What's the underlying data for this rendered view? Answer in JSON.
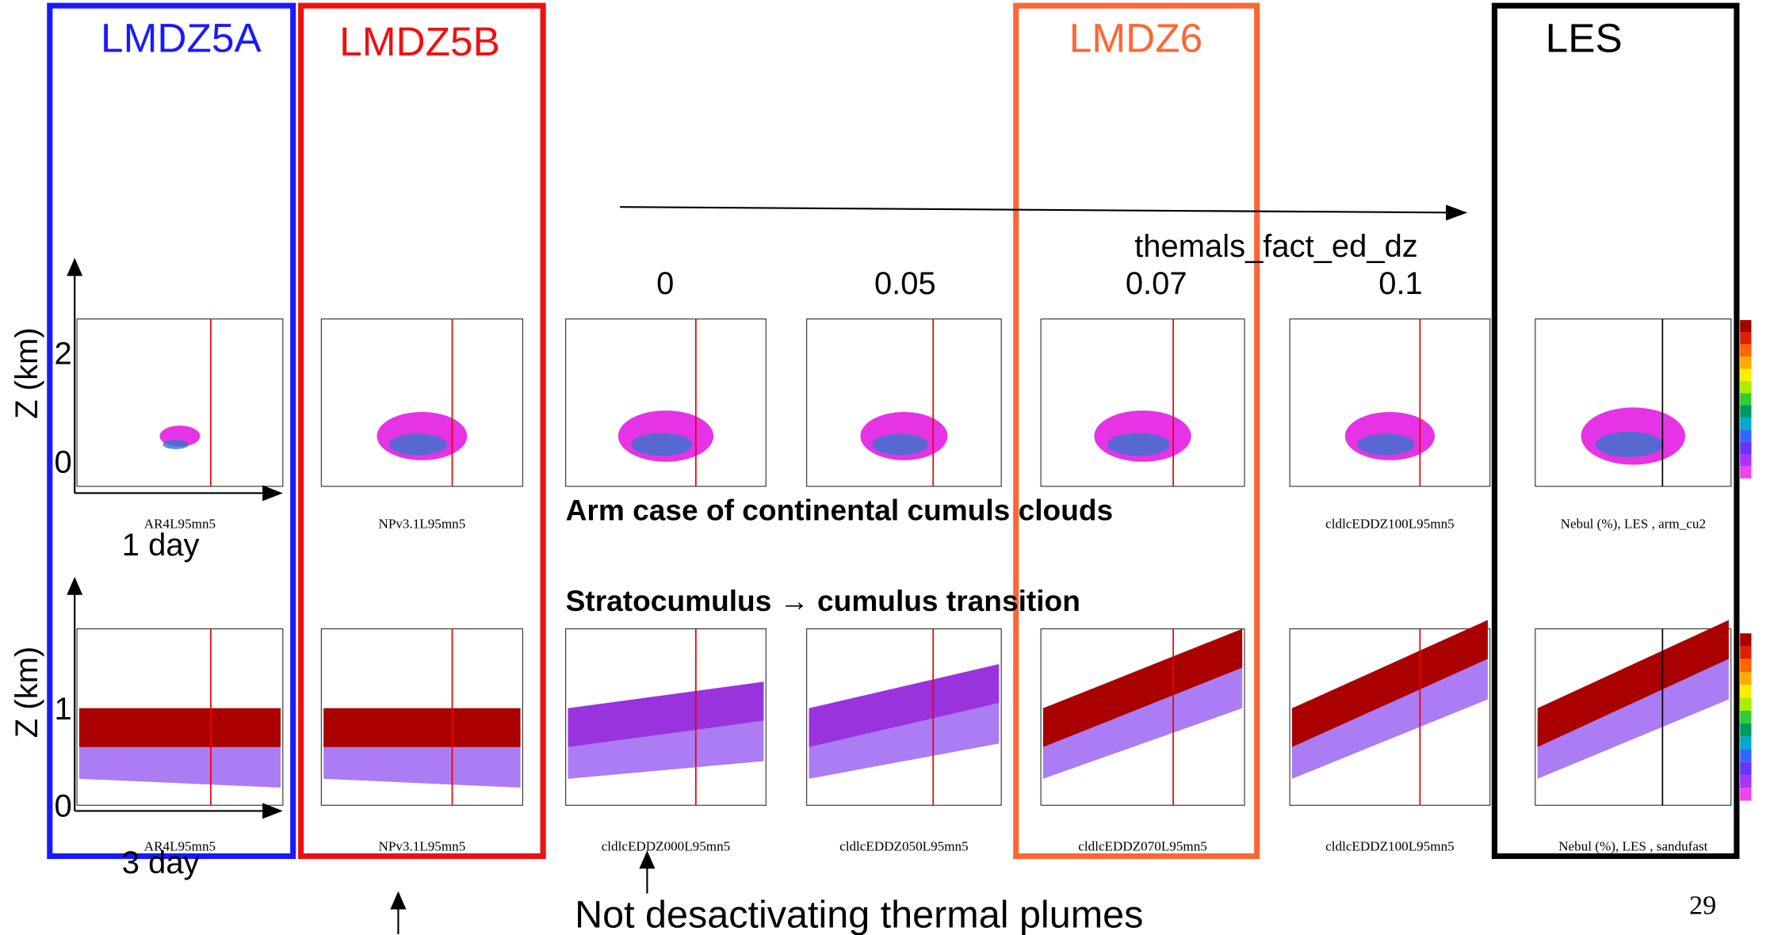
{
  "header": {
    "columns": [
      "LMDZ5A",
      "LMDZ5B",
      "LMDZ6",
      "LES"
    ]
  },
  "parameter": {
    "name": "themals_fact_ed_dz",
    "values": [
      "0",
      "0.05",
      "0.07",
      "0.1"
    ]
  },
  "rows": [
    {
      "title": "Arm case of continental cumuls clouds",
      "axis_label": "Z (km)",
      "ticks": [
        "2",
        "0"
      ],
      "duration": "1 day",
      "captions": [
        "AR4L95mn5",
        "NPv3.1L95mn5",
        "cldlcEDDZ100L95mn5",
        "Nebul (%), LES , arm_cu2"
      ]
    },
    {
      "title": "Stratocumulus → cumulus transition",
      "axis_label": "Z (km)",
      "ticks": [
        "1",
        "0"
      ],
      "duration": "3 day",
      "captions": [
        "AR4L95mn5",
        "NPv3.1L95mn5",
        "cldlcEDDZ000L95mn5",
        "cldlcEDDZ050L95mn5",
        "cldlcEDDZ070L95mn5",
        "cldlcEDDZ100L95mn5",
        "Nebul (%), LES , sandufast"
      ]
    }
  ],
  "footer": {
    "note": "Not desactivating thermal plumes",
    "page_number": "29"
  }
}
